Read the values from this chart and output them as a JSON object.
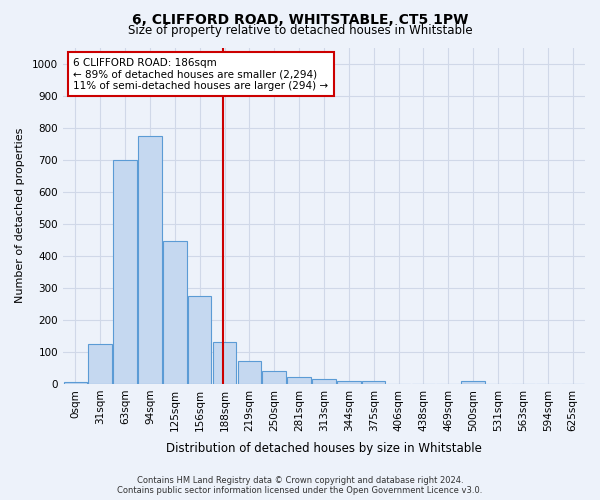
{
  "title": "6, CLIFFORD ROAD, WHITSTABLE, CT5 1PW",
  "subtitle": "Size of property relative to detached houses in Whitstable",
  "xlabel": "Distribution of detached houses by size in Whitstable",
  "ylabel": "Number of detached properties",
  "bin_labels": [
    "0sqm",
    "31sqm",
    "63sqm",
    "94sqm",
    "125sqm",
    "156sqm",
    "188sqm",
    "219sqm",
    "250sqm",
    "281sqm",
    "313sqm",
    "344sqm",
    "375sqm",
    "406sqm",
    "438sqm",
    "469sqm",
    "500sqm",
    "531sqm",
    "563sqm",
    "594sqm",
    "625sqm"
  ],
  "bar_values": [
    5,
    125,
    700,
    775,
    445,
    275,
    130,
    70,
    40,
    22,
    15,
    10,
    8,
    0,
    0,
    0,
    8,
    0,
    0,
    0,
    0
  ],
  "bar_color": "#c5d8f0",
  "bar_edge_color": "#5b9bd5",
  "grid_color": "#d0d8e8",
  "background_color": "#edf2fa",
  "ylim": [
    0,
    1050
  ],
  "annotation_text": "6 CLIFFORD ROAD: 186sqm\n← 89% of detached houses are smaller (2,294)\n11% of semi-detached houses are larger (294) →",
  "annotation_box_color": "#ffffff",
  "annotation_box_edge": "#cc0000",
  "line_color": "#cc0000",
  "footer_line1": "Contains HM Land Registry data © Crown copyright and database right 2024.",
  "footer_line2": "Contains public sector information licensed under the Open Government Licence v3.0."
}
